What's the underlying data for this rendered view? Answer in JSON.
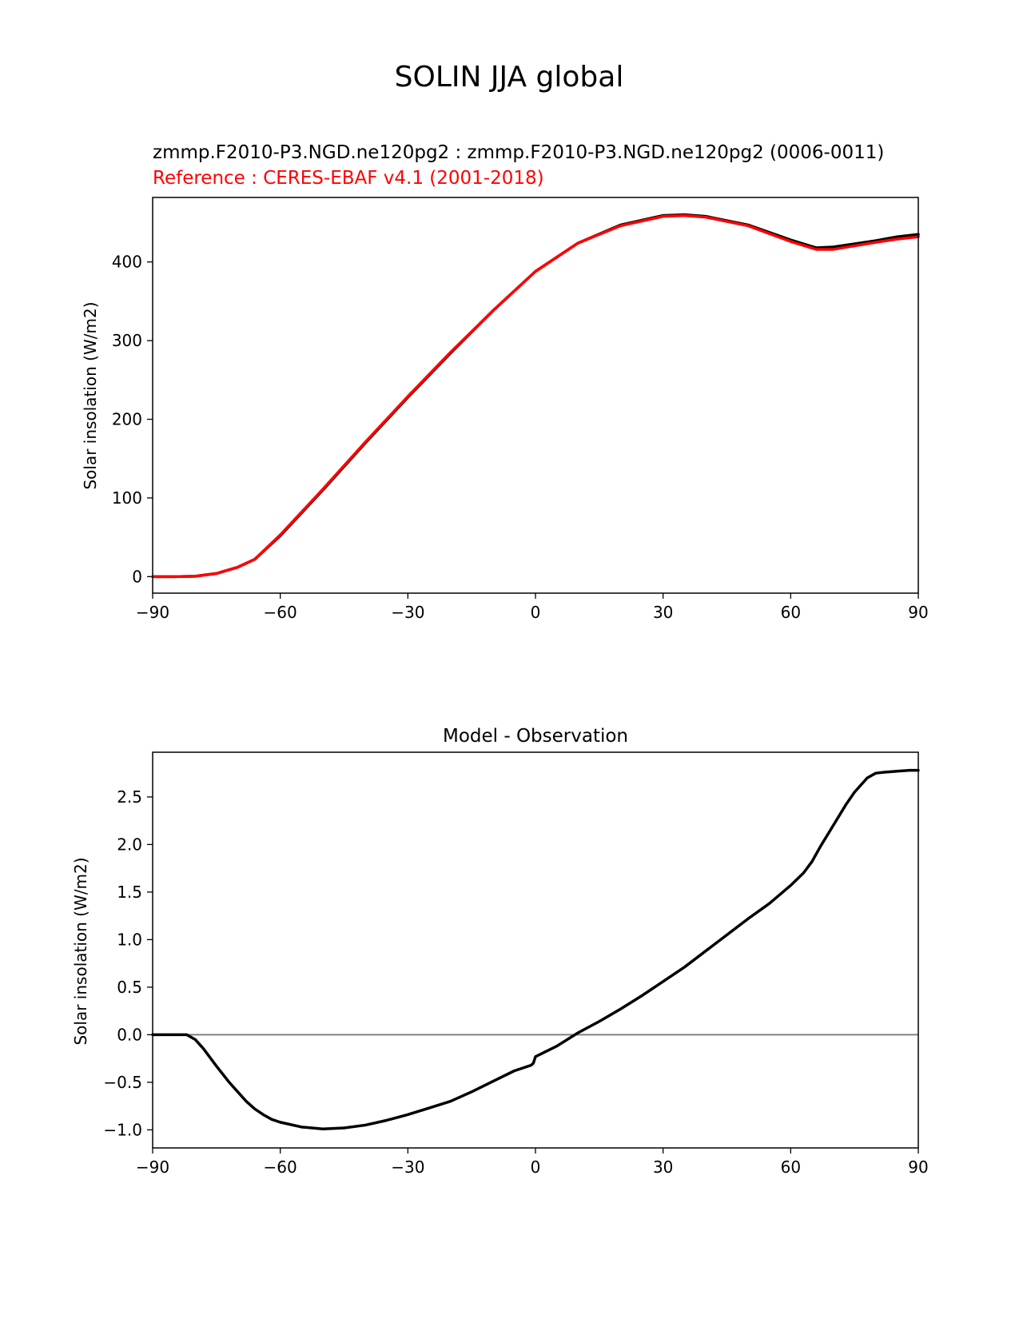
{
  "figure": {
    "suptitle": "SOLIN JJA global"
  },
  "chart_data": [
    {
      "type": "line",
      "title_line1": "zmmp.F2010-P3.NGD.ne120pg2 : zmmp.F2010-P3.NGD.ne120pg2 (0006-0011)",
      "title_line2": "Reference : CERES-EBAF v4.1 (2001-2018)",
      "xlabel": "",
      "ylabel": "Solar insolation (W/m2)",
      "xlim": [
        -90,
        90
      ],
      "ylim": [
        -21,
        482
      ],
      "xticks": [
        -90,
        -60,
        -30,
        0,
        30,
        60,
        90
      ],
      "xtick_labels": [
        "−90",
        "−60",
        "−30",
        "0",
        "30",
        "60",
        "90"
      ],
      "yticks": [
        0,
        100,
        200,
        300,
        400
      ],
      "ytick_labels": [
        "0",
        "100",
        "200",
        "300",
        "400"
      ],
      "series": [
        {
          "name": "Test (zmmp.F2010-P3.NGD.ne120pg2)",
          "color": "#000000",
          "x": [
            -90,
            -85,
            -80,
            -75,
            -70,
            -66,
            -60,
            -50,
            -40,
            -30,
            -20,
            -10,
            0,
            10,
            20,
            30,
            35,
            40,
            50,
            60,
            66,
            70,
            80,
            85,
            90
          ],
          "y": [
            0,
            0,
            0.5,
            4,
            12,
            22,
            52,
            110,
            170,
            228,
            284,
            338,
            388,
            424,
            447,
            459,
            460,
            458,
            447,
            428,
            418,
            419,
            427,
            432,
            435
          ]
        },
        {
          "name": "Reference (CERES-EBAF v4.1)",
          "color": "#ff0000",
          "x": [
            -90,
            -85,
            -80,
            -75,
            -70,
            -66,
            -60,
            -50,
            -40,
            -30,
            -20,
            -10,
            0,
            10,
            20,
            30,
            35,
            40,
            50,
            60,
            66,
            70,
            80,
            85,
            90
          ],
          "y": [
            0,
            0,
            0.5,
            4,
            12,
            22,
            53,
            111,
            171,
            229,
            285,
            338,
            388,
            424,
            446,
            458,
            459,
            457,
            446,
            426,
            416,
            416,
            425,
            429,
            432
          ]
        }
      ]
    },
    {
      "type": "line",
      "title": "Model - Observation",
      "xlabel": "",
      "ylabel": "Solar insolation (W/m2)",
      "xlim": [
        -90,
        90
      ],
      "ylim": [
        -1.19,
        2.97
      ],
      "xticks": [
        -90,
        -60,
        -30,
        0,
        30,
        60,
        90
      ],
      "xtick_labels": [
        "−90",
        "−60",
        "−30",
        "0",
        "30",
        "60",
        "90"
      ],
      "yticks": [
        -1.0,
        -0.5,
        0.0,
        0.5,
        1.0,
        1.5,
        2.0,
        2.5
      ],
      "ytick_labels": [
        "−1.0",
        "−0.5",
        "0.0",
        "0.5",
        "1.0",
        "1.5",
        "2.0",
        "2.5"
      ],
      "zero_line_color": "#808080",
      "series": [
        {
          "name": "Model - Observation",
          "color": "#000000",
          "x": [
            -90,
            -82,
            -80,
            -78,
            -75,
            -72,
            -70,
            -68,
            -66,
            -64,
            -62,
            -60,
            -55,
            -50,
            -45,
            -40,
            -35,
            -30,
            -25,
            -20,
            -15,
            -10,
            -5,
            -1,
            -0.5,
            0,
            5,
            10,
            15,
            20,
            25,
            30,
            35,
            40,
            45,
            50,
            55,
            60,
            63,
            65,
            67,
            70,
            73,
            75,
            78,
            80,
            82,
            85,
            88,
            90
          ],
          "y": [
            0,
            0,
            -0.05,
            -0.15,
            -0.33,
            -0.5,
            -0.6,
            -0.7,
            -0.78,
            -0.84,
            -0.89,
            -0.92,
            -0.97,
            -0.99,
            -0.98,
            -0.95,
            -0.9,
            -0.84,
            -0.77,
            -0.7,
            -0.6,
            -0.49,
            -0.38,
            -0.32,
            -0.3,
            -0.23,
            -0.12,
            0.02,
            0.14,
            0.27,
            0.41,
            0.56,
            0.71,
            0.88,
            1.05,
            1.22,
            1.38,
            1.57,
            1.7,
            1.82,
            1.98,
            2.2,
            2.42,
            2.55,
            2.7,
            2.75,
            2.76,
            2.77,
            2.78,
            2.78
          ]
        }
      ]
    }
  ]
}
